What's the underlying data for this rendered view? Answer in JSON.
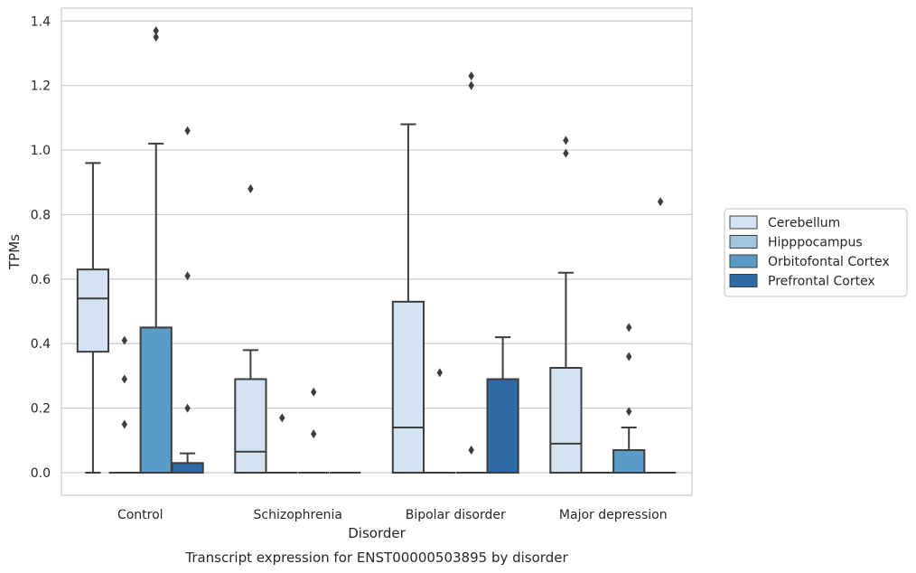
{
  "chart_data": {
    "type": "box",
    "title": "",
    "caption": "Transcript expression for ENST00000503895 by disorder",
    "xlabel": "Disorder",
    "ylabel": "TPMs",
    "ylim": [
      -0.07,
      1.44
    ],
    "yticks": [
      0.0,
      0.2,
      0.4,
      0.6,
      0.8,
      1.0,
      1.2,
      1.4
    ],
    "ytick_labels": [
      "0.0",
      "0.2",
      "0.4",
      "0.6",
      "0.8",
      "1.0",
      "1.2",
      "1.4"
    ],
    "grid": true,
    "legend_position": "right",
    "categories": [
      "Control",
      "Schizophrenia",
      "Bipolar disorder",
      "Major depression"
    ],
    "series": [
      {
        "name": "Cerebellum",
        "color": "#d4e3f2",
        "boxes": [
          {
            "whislo": 0.0,
            "q1": 0.375,
            "med": 0.54,
            "q3": 0.63,
            "whishi": 0.96,
            "fliers": []
          },
          {
            "whislo": 0.0,
            "q1": 0.0,
            "med": 0.065,
            "q3": 0.29,
            "whishi": 0.38,
            "fliers": [
              0.88
            ]
          },
          {
            "whislo": 0.0,
            "q1": 0.0,
            "med": 0.14,
            "q3": 0.53,
            "whishi": 1.08,
            "fliers": []
          },
          {
            "whislo": 0.0,
            "q1": 0.0,
            "med": 0.09,
            "q3": 0.325,
            "whishi": 0.62,
            "fliers": [
              0.99,
              1.03
            ]
          }
        ]
      },
      {
        "name": "Hipppocampus",
        "color": "#9fc5df",
        "boxes": [
          {
            "whislo": 0.0,
            "q1": 0.0,
            "med": 0.0,
            "q3": 0.0,
            "whishi": 0.0,
            "fliers": [
              0.15,
              0.29,
              0.41
            ]
          },
          {
            "whislo": 0.0,
            "q1": 0.0,
            "med": 0.0,
            "q3": 0.0,
            "whishi": 0.0,
            "fliers": [
              0.17
            ]
          },
          {
            "whislo": 0.0,
            "q1": 0.0,
            "med": 0.0,
            "q3": 0.0,
            "whishi": 0.0,
            "fliers": [
              0.31
            ]
          },
          {
            "whislo": 0.0,
            "q1": 0.0,
            "med": 0.0,
            "q3": 0.0,
            "whishi": 0.0,
            "fliers": []
          }
        ]
      },
      {
        "name": "Orbitofontal Cortex",
        "color": "#5b9bc8",
        "boxes": [
          {
            "whislo": 0.0,
            "q1": 0.0,
            "med": 0.0,
            "q3": 0.45,
            "whishi": 1.02,
            "fliers": [
              1.35,
              1.37
            ]
          },
          {
            "whislo": 0.0,
            "q1": 0.0,
            "med": 0.0,
            "q3": 0.0,
            "whishi": 0.0,
            "fliers": [
              0.12,
              0.25
            ]
          },
          {
            "whislo": 0.0,
            "q1": 0.0,
            "med": 0.0,
            "q3": 0.0,
            "whishi": 0.0,
            "fliers": [
              0.07,
              1.2,
              1.23
            ]
          },
          {
            "whislo": 0.0,
            "q1": 0.0,
            "med": 0.0,
            "q3": 0.07,
            "whishi": 0.14,
            "fliers": [
              0.19,
              0.36,
              0.45
            ]
          }
        ]
      },
      {
        "name": "Prefrontal Cortex",
        "color": "#2e6aa5",
        "boxes": [
          {
            "whislo": 0.0,
            "q1": 0.0,
            "med": 0.0,
            "q3": 0.03,
            "whishi": 0.06,
            "fliers": [
              0.2,
              0.61,
              1.06
            ]
          },
          {
            "whislo": 0.0,
            "q1": 0.0,
            "med": 0.0,
            "q3": 0.0,
            "whishi": 0.0,
            "fliers": []
          },
          {
            "whislo": 0.0,
            "q1": 0.0,
            "med": 0.0,
            "q3": 0.29,
            "whishi": 0.42,
            "fliers": []
          },
          {
            "whislo": 0.0,
            "q1": 0.0,
            "med": 0.0,
            "q3": 0.0,
            "whishi": 0.0,
            "fliers": [
              0.84
            ]
          }
        ]
      }
    ]
  }
}
